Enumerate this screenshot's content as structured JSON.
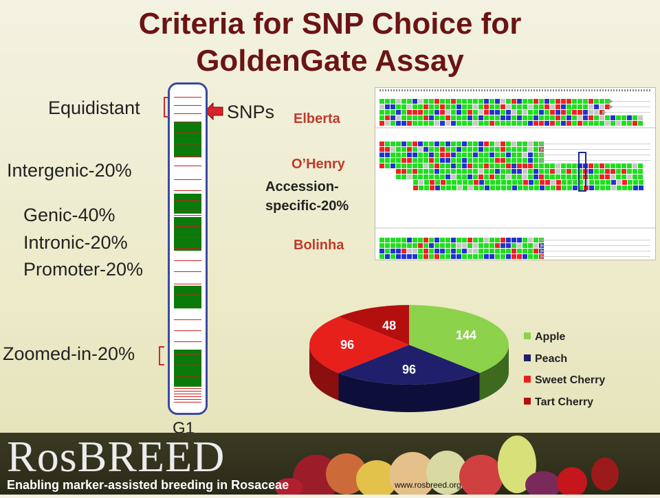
{
  "title": {
    "line1": "Criteria for SNP Choice for",
    "line2": "GoldenGate Assay"
  },
  "chromosome": {
    "name": "G1",
    "labels": {
      "equidistant": "Equidistant",
      "snps": "SNPs",
      "intergenic": "Intergenic-20%",
      "genic": "Genic-40%",
      "intronic": "Intronic-20%",
      "promoter": "Promoter-20%",
      "zoomed": "Zoomed-in-20%"
    }
  },
  "alignment": {
    "accessions": [
      "Elberta",
      "O’Henry",
      "Bolinha"
    ],
    "specific_label_1": "Accession-",
    "specific_label_2": "specific-20%",
    "colors": {
      "green": "#22dd22",
      "blue": "#2233cc",
      "red": "#ee2222",
      "gray": "#c8c8c8"
    }
  },
  "chart_data": {
    "type": "pie",
    "categories": [
      "Apple",
      "Peach",
      "Sweet Cherry",
      "Tart Cherry"
    ],
    "values": [
      144,
      96,
      96,
      48
    ],
    "colors": [
      "#8cd24b",
      "#1f1f6b",
      "#e8201c",
      "#b40f0f"
    ],
    "legend_position": "right"
  },
  "footer": {
    "logo": "RosBREED",
    "tagline": "Enabling marker-assisted breeding in Rosaceae",
    "url": "www.rosbreed.org"
  }
}
